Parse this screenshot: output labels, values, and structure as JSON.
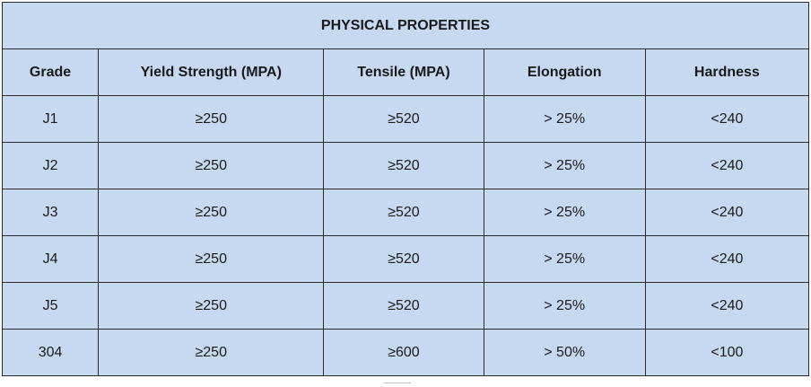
{
  "table": {
    "title": "PHYSICAL PROPERTIES",
    "headers": [
      "Grade",
      "Yield Strength (MPA)",
      "Tensile (MPA)",
      "Elongation",
      "Hardness"
    ],
    "rows": [
      [
        "J1",
        "≥250",
        "≥520",
        "> 25%",
        "<240"
      ],
      [
        "J2",
        "≥250",
        "≥520",
        "> 25%",
        "<240"
      ],
      [
        "J3",
        "≥250",
        "≥520",
        "> 25%",
        "<240"
      ],
      [
        "J4",
        "≥250",
        "≥520",
        "> 25%",
        "<240"
      ],
      [
        "J5",
        "≥250",
        "≥520",
        "> 25%",
        "<240"
      ],
      [
        "304",
        "≥250",
        "≥600",
        "> 50%",
        "<100"
      ]
    ]
  },
  "colors": {
    "cell_background": "#c6d9f1",
    "border": "#2b2b2b",
    "text": "#1a1a1a"
  }
}
